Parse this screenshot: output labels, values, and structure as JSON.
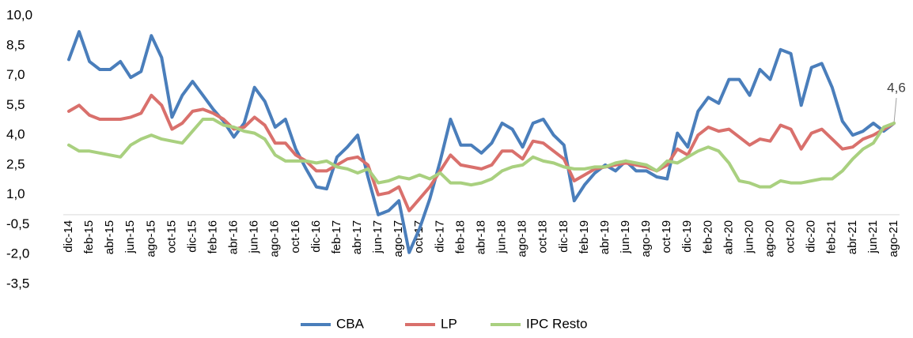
{
  "chart_data": {
    "type": "line",
    "categories": [
      "dic-14",
      null,
      "feb-15",
      null,
      "abr-15",
      null,
      "jun-15",
      null,
      "ago-15",
      null,
      "oct-15",
      null,
      "dic-15",
      null,
      "feb-16",
      null,
      "abr-16",
      null,
      "jun-16",
      null,
      "ago-16",
      null,
      "oct-16",
      null,
      "dic-16",
      null,
      "feb-17",
      null,
      "abr-17",
      null,
      "jun-17",
      null,
      "ago-17",
      null,
      "oct-17",
      null,
      "dic-17",
      null,
      "feb-18",
      null,
      "abr-18",
      null,
      "jun-18",
      null,
      "ago-18",
      null,
      "oct-18",
      null,
      "dic-18",
      null,
      "feb-19",
      null,
      "abr-19",
      null,
      "jun-19",
      null,
      "ago-19",
      null,
      "oct-19",
      null,
      "dic-19",
      null,
      "feb-20",
      null,
      "abr-20",
      null,
      "jun-20",
      null,
      "ago-20",
      null,
      "oct-20",
      null,
      "dic-20",
      null,
      "feb-21",
      null,
      "abr-21",
      null,
      "jun-21",
      null,
      "ago-21"
    ],
    "series": [
      {
        "name": "CBA",
        "color": "#4a7ebb",
        "values": [
          7.8,
          9.2,
          7.7,
          7.3,
          7.3,
          7.7,
          6.9,
          7.2,
          9.0,
          7.9,
          4.9,
          6.0,
          6.7,
          6.0,
          5.3,
          4.7,
          3.9,
          4.6,
          6.4,
          5.7,
          4.4,
          4.8,
          3.3,
          2.3,
          1.4,
          1.3,
          2.9,
          3.4,
          4.0,
          1.9,
          0.0,
          0.2,
          0.7,
          -1.9,
          -0.7,
          0.8,
          2.7,
          4.8,
          3.5,
          3.5,
          3.1,
          3.6,
          4.6,
          4.3,
          3.4,
          4.6,
          4.8,
          4.0,
          3.5,
          0.7,
          1.5,
          2.1,
          2.5,
          2.2,
          2.7,
          2.2,
          2.2,
          1.9,
          1.8,
          4.1,
          3.4,
          5.2,
          5.9,
          5.6,
          6.8,
          6.8,
          6.0,
          7.3,
          6.8,
          8.3,
          8.1,
          5.5,
          7.4,
          7.6,
          6.4,
          4.7,
          4.0,
          4.2,
          4.6,
          4.2,
          4.6
        ]
      },
      {
        "name": "LP",
        "color": "#d9706c",
        "values": [
          5.2,
          5.5,
          5.0,
          4.8,
          4.8,
          4.8,
          4.9,
          5.1,
          6.0,
          5.5,
          4.3,
          4.6,
          5.2,
          5.3,
          5.1,
          4.8,
          4.3,
          4.4,
          4.9,
          4.5,
          3.6,
          3.6,
          3.0,
          2.7,
          2.2,
          2.2,
          2.5,
          2.8,
          2.9,
          2.5,
          1.0,
          1.1,
          1.4,
          0.2,
          0.8,
          1.4,
          2.2,
          3.0,
          2.5,
          2.4,
          2.3,
          2.5,
          3.2,
          3.2,
          2.8,
          3.7,
          3.6,
          3.2,
          2.8,
          1.7,
          2.0,
          2.3,
          2.4,
          2.5,
          2.6,
          2.5,
          2.4,
          2.2,
          2.5,
          3.3,
          3.0,
          4.0,
          4.4,
          4.2,
          4.3,
          3.9,
          3.5,
          3.8,
          3.7,
          4.5,
          4.3,
          3.3,
          4.1,
          4.3,
          3.8,
          3.3,
          3.4,
          3.8,
          4.0,
          4.3,
          4.6
        ]
      },
      {
        "name": "IPC Resto",
        "color": "#a9d07f",
        "values": [
          3.5,
          3.2,
          3.2,
          3.1,
          3.0,
          2.9,
          3.5,
          3.8,
          4.0,
          3.8,
          3.7,
          3.6,
          4.2,
          4.8,
          4.8,
          4.5,
          4.4,
          4.2,
          4.1,
          3.8,
          3.0,
          2.7,
          2.7,
          2.7,
          2.6,
          2.7,
          2.4,
          2.3,
          2.1,
          2.3,
          1.6,
          1.7,
          1.9,
          1.8,
          2.0,
          1.8,
          2.1,
          1.6,
          1.6,
          1.5,
          1.6,
          1.8,
          2.2,
          2.4,
          2.5,
          2.9,
          2.7,
          2.6,
          2.4,
          2.3,
          2.3,
          2.4,
          2.4,
          2.6,
          2.7,
          2.6,
          2.5,
          2.2,
          2.7,
          2.6,
          2.9,
          3.2,
          3.4,
          3.2,
          2.6,
          1.7,
          1.6,
          1.4,
          1.4,
          1.7,
          1.6,
          1.6,
          1.7,
          1.8,
          1.8,
          2.2,
          2.8,
          3.3,
          3.6,
          4.4,
          4.6
        ]
      }
    ],
    "ylim": [
      -3.5,
      10
    ],
    "yticks": [
      {
        "value": 10,
        "label": "10,0"
      },
      {
        "value": 8.5,
        "label": "8,5"
      },
      {
        "value": 7,
        "label": "7,0"
      },
      {
        "value": 5.5,
        "label": "5,5"
      },
      {
        "value": 4,
        "label": "4,0"
      },
      {
        "value": 2.5,
        "label": "2,5"
      },
      {
        "value": 1,
        "label": "1,0"
      },
      {
        "value": -0.5,
        "label": "-0,5"
      },
      {
        "value": -2,
        "label": "-2,0"
      },
      {
        "value": -3.5,
        "label": "-3,5"
      }
    ],
    "annotation": "4,6",
    "legend": "bottom"
  }
}
